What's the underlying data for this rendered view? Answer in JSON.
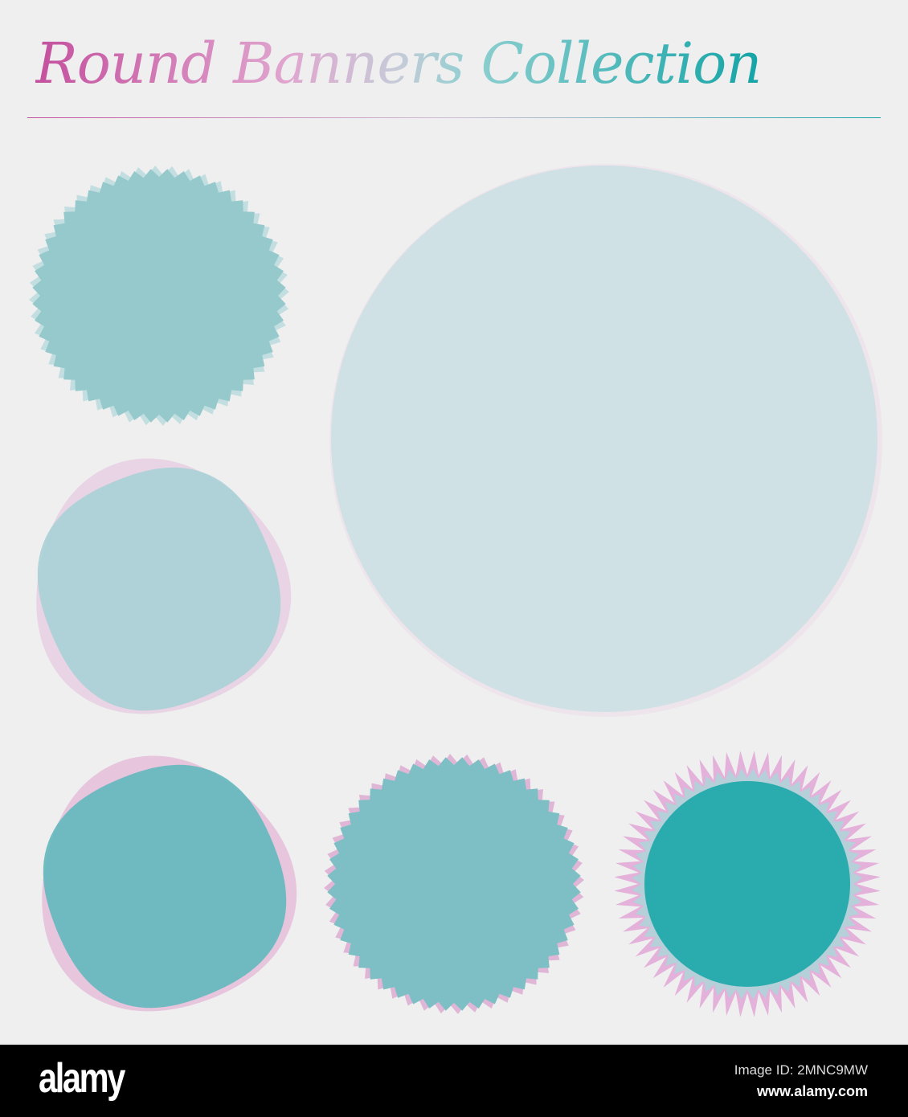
{
  "title": "Round Banners Collection",
  "colors": {
    "background": "#efefef",
    "pink": "#c4509e",
    "teal": "#14a4a6"
  },
  "banners": [
    {
      "style": "zigzag",
      "fill": "#95c9cc",
      "edge": "#b8dadc"
    },
    {
      "style": "smooth",
      "fill": "#cfe1e4",
      "edge": "#eddce8"
    },
    {
      "style": "wobbly",
      "fill": "#a9d0d6",
      "edge": "#e6c9df"
    },
    {
      "style": "wobbly",
      "fill": "#62b8bc",
      "edge": "#e2b4d6"
    },
    {
      "style": "zigzag",
      "fill": "#7dbfc4",
      "edge": "#dca7d1"
    },
    {
      "style": "spiky",
      "fill": "#2aabae",
      "edge": "#e0a6d6"
    }
  ],
  "footer": {
    "logo": "alamy",
    "image_id": "Image ID: 2MNC9MW",
    "url": "www.alamy.com"
  }
}
